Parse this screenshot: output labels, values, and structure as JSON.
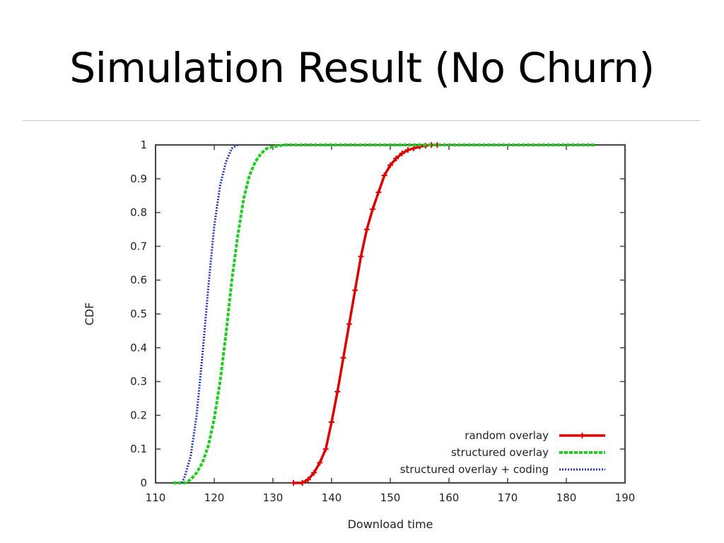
{
  "slide": {
    "title": "Simulation Result (No Churn)"
  },
  "chart_data": {
    "type": "line",
    "title": "",
    "xlabel": "Download time",
    "ylabel": "CDF",
    "xlim": [
      110,
      190
    ],
    "ylim": [
      0,
      1
    ],
    "xticks": [
      110,
      120,
      130,
      140,
      150,
      160,
      170,
      180,
      190
    ],
    "yticks": [
      0,
      0.1,
      0.2,
      0.3,
      0.4,
      0.5,
      0.6,
      0.7,
      0.8,
      0.9,
      1
    ],
    "grid": false,
    "legend_position": "bottom-right",
    "series": [
      {
        "name": "random overlay",
        "color": "#dd0000",
        "style": "solid-with-markers",
        "x": [
          133.5,
          135,
          136,
          137,
          138,
          139,
          140,
          141,
          142,
          143,
          144,
          145,
          146,
          147,
          148,
          149,
          150,
          151,
          152,
          153,
          154,
          155,
          156,
          157,
          158
        ],
        "y": [
          0,
          0,
          0.01,
          0.03,
          0.06,
          0.1,
          0.18,
          0.27,
          0.37,
          0.47,
          0.57,
          0.67,
          0.75,
          0.81,
          0.86,
          0.91,
          0.94,
          0.96,
          0.975,
          0.985,
          0.99,
          0.995,
          0.998,
          1,
          1
        ]
      },
      {
        "name": "structured overlay",
        "color": "#22cc22",
        "style": "dashed",
        "x": [
          113,
          115,
          116,
          117,
          118,
          119,
          120,
          121,
          122,
          123,
          124,
          125,
          126,
          127,
          128,
          129,
          130,
          132,
          135,
          140,
          150,
          160,
          170,
          185
        ],
        "y": [
          0,
          0,
          0.01,
          0.03,
          0.06,
          0.11,
          0.19,
          0.3,
          0.44,
          0.6,
          0.73,
          0.84,
          0.91,
          0.95,
          0.975,
          0.99,
          0.995,
          1,
          1,
          1,
          1,
          1,
          1,
          1
        ]
      },
      {
        "name": "structured overlay + coding",
        "color": "#2233bb",
        "style": "dotted",
        "x": [
          114.5,
          115,
          116,
          117,
          118,
          119,
          120,
          121,
          122,
          123,
          124
        ],
        "y": [
          0,
          0.02,
          0.08,
          0.2,
          0.38,
          0.58,
          0.76,
          0.88,
          0.95,
          0.99,
          1
        ]
      }
    ]
  }
}
